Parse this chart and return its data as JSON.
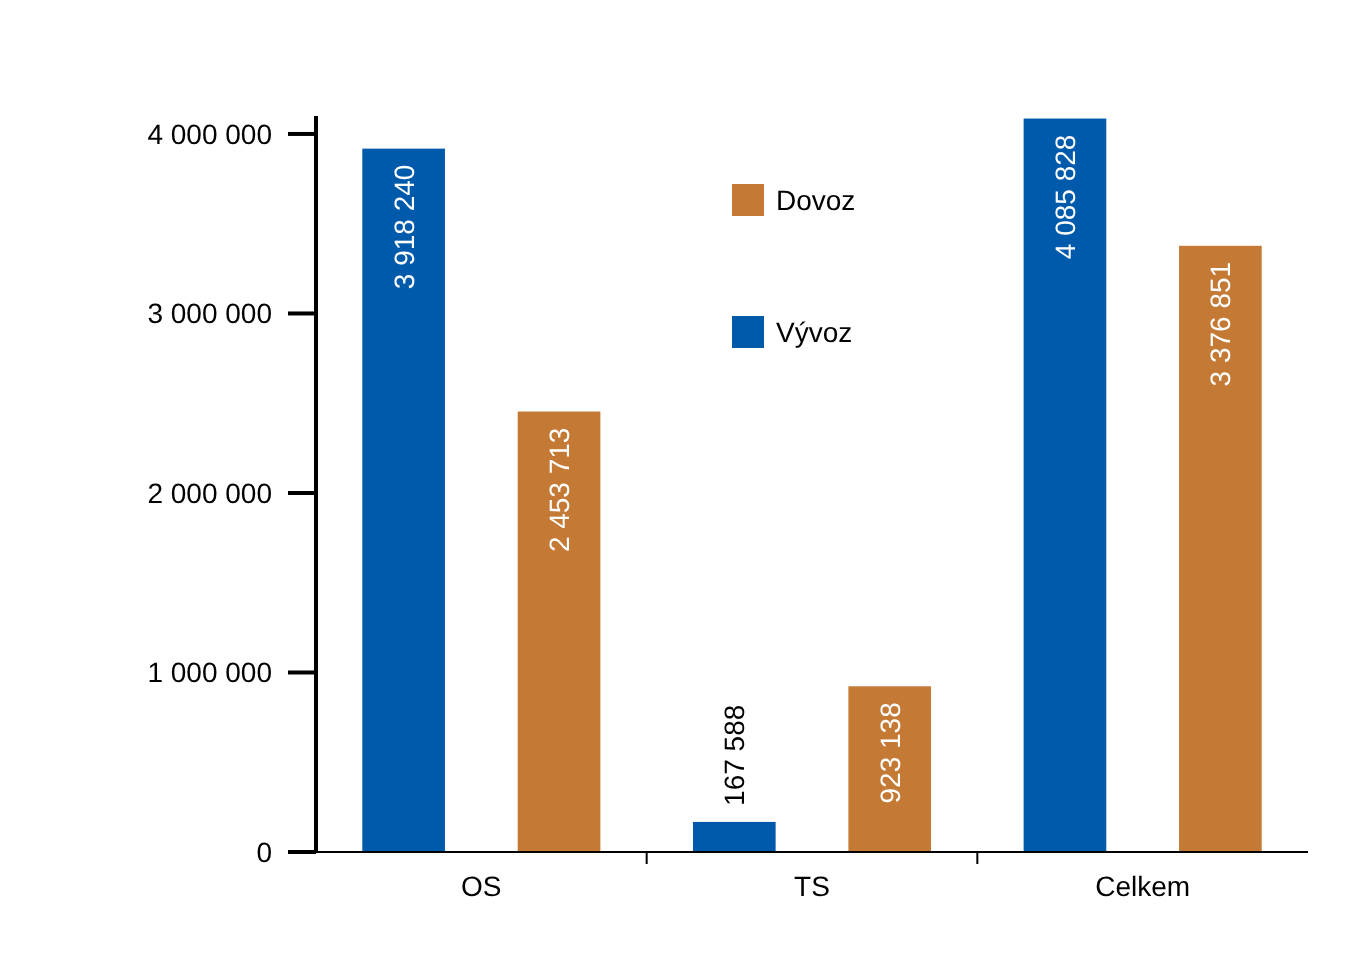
{
  "chart_data": {
    "type": "bar",
    "categories": [
      "OS",
      "TS",
      "Celkem"
    ],
    "series": [
      {
        "name": "Vývoz",
        "color": "#005aab",
        "values": [
          3918240,
          167588,
          4085828
        ],
        "value_labels": [
          "3 918 240",
          "167 588",
          "4 085 828"
        ]
      },
      {
        "name": "Dovoz",
        "color": "#c47a35",
        "values": [
          2453713,
          923138,
          3376851
        ],
        "value_labels": [
          "2 453 713",
          "923 138",
          "3 376 851"
        ]
      }
    ],
    "ylim": [
      0,
      4100000
    ],
    "yticks": [
      {
        "value": 0,
        "label": "0"
      },
      {
        "value": 1000000,
        "label": "1 000 000"
      },
      {
        "value": 2000000,
        "label": "2 000 000"
      },
      {
        "value": 3000000,
        "label": "3 000 000"
      },
      {
        "value": 4000000,
        "label": "4 000 000"
      }
    ],
    "grid": false,
    "legend": "top"
  }
}
